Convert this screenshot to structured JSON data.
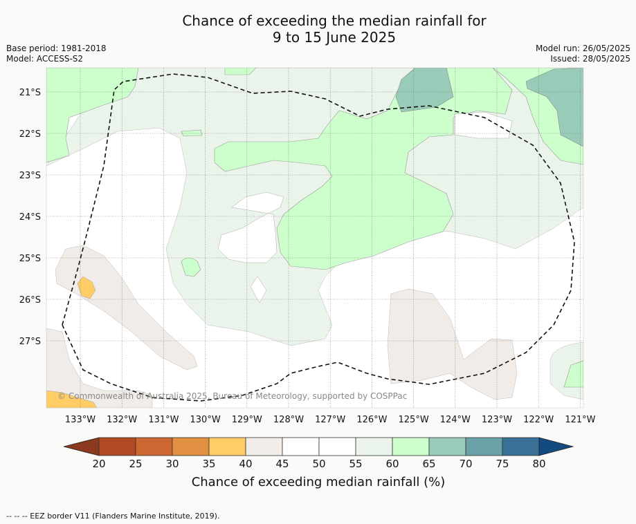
{
  "title": {
    "line1": "Chance of exceeding the median rainfall for",
    "line2": "9 to 15 June 2025"
  },
  "meta": {
    "base_period": "Base period: 1981-2018",
    "model": "Model: ACCESS-S2",
    "model_run": "Model run: 26/05/2025",
    "issued": "Issued: 28/05/2025"
  },
  "map": {
    "latitude_labels": [
      "21°S",
      "22°S",
      "23°S",
      "24°S",
      "25°S",
      "26°S",
      "27°S"
    ],
    "longitude_labels": [
      "133°W",
      "132°W",
      "131°W",
      "130°W",
      "129°W",
      "128°W",
      "127°W",
      "126°W",
      "125°W",
      "124°W",
      "123°W",
      "122°W",
      "121°W"
    ],
    "copyright": "© Commonwealth of Australia 2025, Bureau of Meteorology, supported by COSPPac",
    "colors": {
      "c40_45": "#f1ece7",
      "c35_40": "#ffcc66",
      "c45_55": "#ffffff",
      "c55_60": "#ebf4ea",
      "c60_65": "#ccffcc",
      "c65_70": "#99ccb8"
    }
  },
  "colorbar": {
    "tick_labels": [
      "20",
      "25",
      "30",
      "35",
      "40",
      "45",
      "50",
      "55",
      "60",
      "65",
      "70",
      "75",
      "80"
    ],
    "colors": [
      "#8b3a1f",
      "#b04a25",
      "#cc6633",
      "#e09040",
      "#ffcc66",
      "#f1ece7",
      "#ffffff",
      "#ffffff",
      "#ebf4ea",
      "#ccffcc",
      "#99ccb8",
      "#6aa0a8",
      "#3a7096",
      "#134a80"
    ],
    "title": "Chance of exceeding median rainfall (%)"
  },
  "footer": "--  --  -- EEZ border V11 (Flanders Marine Institute, 2019)."
}
